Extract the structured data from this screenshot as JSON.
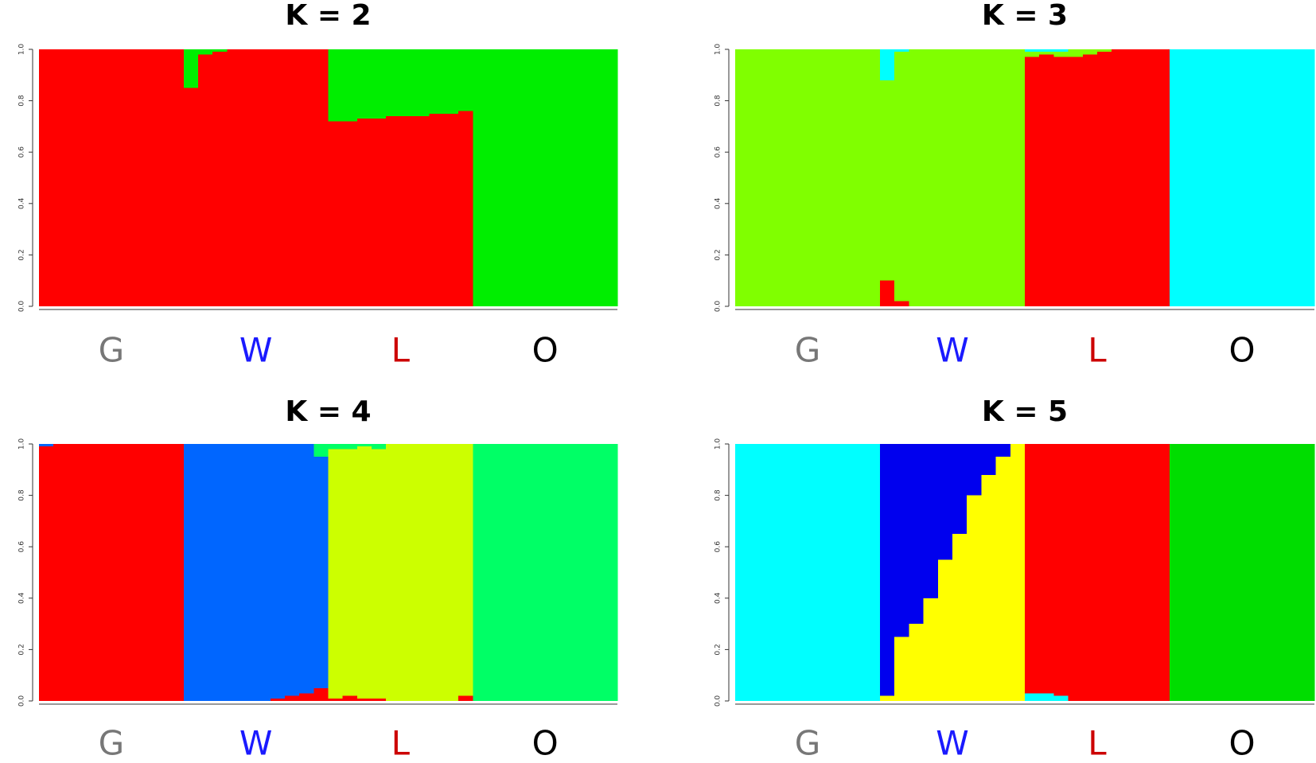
{
  "chart_data": [
    {
      "type": "structure",
      "title": "K = 2",
      "ylim": [
        0,
        1
      ],
      "yticks": [
        {
          "value": 0,
          "label": "0.0"
        },
        {
          "value": 0.2,
          "label": "0.2"
        },
        {
          "value": 0.4,
          "label": "0.4"
        },
        {
          "value": 0.6,
          "label": "0.6"
        },
        {
          "value": 0.8,
          "label": "0.8"
        },
        {
          "value": 1,
          "label": "1.0"
        }
      ],
      "groups": [
        {
          "label": "G",
          "color": "#777777"
        },
        {
          "label": "W",
          "color": "#1a1aff"
        },
        {
          "label": "L",
          "color": "#cc0000"
        },
        {
          "label": "O",
          "color": "#000000"
        }
      ],
      "series": [
        {
          "color": "#ff0000",
          "values": [
            1,
            1,
            1,
            1,
            1,
            1,
            1,
            1,
            1,
            1,
            0.85,
            0.98,
            0.99,
            1,
            1,
            1,
            1,
            1,
            1,
            1,
            0.72,
            0.72,
            0.73,
            0.73,
            0.74,
            0.74,
            0.74,
            0.75,
            0.75,
            0.76,
            0,
            0,
            0,
            0,
            0,
            0,
            0,
            0,
            0,
            0
          ]
        },
        {
          "color": "#00ee00",
          "values": [
            0,
            0,
            0,
            0,
            0,
            0,
            0,
            0,
            0,
            0,
            0.15,
            0.02,
            0.01,
            0,
            0,
            0,
            0,
            0,
            0,
            0,
            0.28,
            0.28,
            0.27,
            0.27,
            0.26,
            0.26,
            0.26,
            0.25,
            0.25,
            0.24,
            1,
            1,
            1,
            1,
            1,
            1,
            1,
            1,
            1,
            1
          ]
        }
      ]
    },
    {
      "type": "structure",
      "title": "K = 3",
      "ylim": [
        0,
        1
      ],
      "yticks": [
        {
          "value": 0,
          "label": "0.0"
        },
        {
          "value": 0.2,
          "label": "0.2"
        },
        {
          "value": 0.4,
          "label": "0.4"
        },
        {
          "value": 0.6,
          "label": "0.6"
        },
        {
          "value": 0.8,
          "label": "0.8"
        },
        {
          "value": 1,
          "label": "1.0"
        }
      ],
      "groups": [
        {
          "label": "G",
          "color": "#777777"
        },
        {
          "label": "W",
          "color": "#1a1aff"
        },
        {
          "label": "L",
          "color": "#cc0000"
        },
        {
          "label": "O",
          "color": "#000000"
        }
      ],
      "series": [
        {
          "color": "#ff0000",
          "values": [
            0,
            0,
            0,
            0,
            0,
            0,
            0,
            0,
            0,
            0,
            0.1,
            0.02,
            0,
            0,
            0,
            0,
            0,
            0,
            0,
            0,
            0.97,
            0.98,
            0.97,
            0.97,
            0.98,
            0.99,
            1,
            1,
            1,
            1,
            0,
            0,
            0,
            0,
            0,
            0,
            0,
            0,
            0,
            0
          ]
        },
        {
          "color": "#80ff00",
          "values": [
            1,
            1,
            1,
            1,
            1,
            1,
            1,
            1,
            1,
            1,
            0.78,
            0.97,
            1,
            1,
            1,
            1,
            1,
            1,
            1,
            1,
            0.02,
            0.01,
            0.02,
            0.03,
            0.02,
            0.01,
            0,
            0,
            0,
            0,
            0,
            0,
            0,
            0,
            0,
            0,
            0,
            0,
            0,
            0
          ]
        },
        {
          "color": "#00ffff",
          "values": [
            0,
            0,
            0,
            0,
            0,
            0,
            0,
            0,
            0,
            0,
            0.12,
            0.01,
            0,
            0,
            0,
            0,
            0,
            0,
            0,
            0,
            0.01,
            0.01,
            0.01,
            0,
            0,
            0,
            0,
            0,
            0,
            0,
            1,
            1,
            1,
            1,
            1,
            1,
            1,
            1,
            1,
            1
          ]
        }
      ]
    },
    {
      "type": "structure",
      "title": "K = 4",
      "ylim": [
        0,
        1
      ],
      "yticks": [
        {
          "value": 0,
          "label": "0.0"
        },
        {
          "value": 0.2,
          "label": "0.2"
        },
        {
          "value": 0.4,
          "label": "0.4"
        },
        {
          "value": 0.6,
          "label": "0.6"
        },
        {
          "value": 0.8,
          "label": "0.8"
        },
        {
          "value": 1,
          "label": "1.0"
        }
      ],
      "groups": [
        {
          "label": "G",
          "color": "#777777"
        },
        {
          "label": "W",
          "color": "#1a1aff"
        },
        {
          "label": "L",
          "color": "#cc0000"
        },
        {
          "label": "O",
          "color": "#000000"
        }
      ],
      "series": [
        {
          "color": "#ff0000",
          "values": [
            0.99,
            1,
            1,
            1,
            1,
            1,
            1,
            1,
            1,
            1,
            0,
            0,
            0,
            0,
            0,
            0,
            0.01,
            0.02,
            0.03,
            0.05,
            0.01,
            0.02,
            0.01,
            0.01,
            0,
            0,
            0,
            0,
            0,
            0.02,
            0,
            0,
            0,
            0,
            0,
            0,
            0,
            0,
            0,
            0
          ]
        },
        {
          "color": "#0066ff",
          "values": [
            0.01,
            0,
            0,
            0,
            0,
            0,
            0,
            0,
            0,
            0,
            1,
            1,
            1,
            1,
            1,
            1,
            0.99,
            0.98,
            0.97,
            0.9,
            0,
            0,
            0,
            0,
            0,
            0,
            0,
            0,
            0,
            0,
            0,
            0,
            0,
            0,
            0,
            0,
            0,
            0,
            0,
            0
          ]
        },
        {
          "color": "#ccff00",
          "values": [
            0,
            0,
            0,
            0,
            0,
            0,
            0,
            0,
            0,
            0,
            0,
            0,
            0,
            0,
            0,
            0,
            0,
            0,
            0,
            0,
            0.97,
            0.96,
            0.98,
            0.97,
            1,
            1,
            1,
            1,
            1,
            0.98,
            0,
            0,
            0,
            0,
            0,
            0,
            0,
            0,
            0,
            0
          ]
        },
        {
          "color": "#00ff66",
          "values": [
            0,
            0,
            0,
            0,
            0,
            0,
            0,
            0,
            0,
            0,
            0,
            0,
            0,
            0,
            0,
            0,
            0,
            0,
            0,
            0.05,
            0.02,
            0.02,
            0.01,
            0.02,
            0,
            0,
            0,
            0,
            0,
            0,
            1,
            1,
            1,
            1,
            1,
            1,
            1,
            1,
            1,
            1
          ]
        }
      ]
    },
    {
      "type": "structure",
      "title": "K = 5",
      "ylim": [
        0,
        1
      ],
      "yticks": [
        {
          "value": 0,
          "label": "0.0"
        },
        {
          "value": 0.2,
          "label": "0.2"
        },
        {
          "value": 0.4,
          "label": "0.4"
        },
        {
          "value": 0.6,
          "label": "0.6"
        },
        {
          "value": 0.8,
          "label": "0.8"
        },
        {
          "value": 1,
          "label": "1.0"
        }
      ],
      "groups": [
        {
          "label": "G",
          "color": "#777777"
        },
        {
          "label": "W",
          "color": "#1a1aff"
        },
        {
          "label": "L",
          "color": "#cc0000"
        },
        {
          "label": "O",
          "color": "#000000"
        }
      ],
      "series": [
        {
          "color": "#00ffff",
          "values": [
            1,
            1,
            1,
            1,
            1,
            1,
            1,
            1,
            1,
            1,
            0,
            0,
            0,
            0,
            0,
            0,
            0,
            0,
            0,
            0,
            0.03,
            0.03,
            0.02,
            0,
            0,
            0,
            0,
            0,
            0,
            0,
            0,
            0,
            0,
            0,
            0,
            0,
            0,
            0,
            0,
            0
          ]
        },
        {
          "color": "#ffff00",
          "values": [
            0,
            0,
            0,
            0,
            0,
            0,
            0,
            0,
            0,
            0,
            0.02,
            0.25,
            0.3,
            0.4,
            0.55,
            0.65,
            0.8,
            0.88,
            0.95,
            1,
            0,
            0,
            0,
            0,
            0,
            0,
            0,
            0,
            0,
            0,
            0,
            0,
            0,
            0,
            0,
            0,
            0,
            0,
            0,
            0
          ]
        },
        {
          "color": "#0000ee",
          "values": [
            0,
            0,
            0,
            0,
            0,
            0,
            0,
            0,
            0,
            0,
            0.98,
            0.75,
            0.7,
            0.6,
            0.45,
            0.35,
            0.2,
            0.12,
            0.05,
            0,
            0,
            0,
            0,
            0,
            0,
            0,
            0,
            0,
            0,
            0,
            0,
            0,
            0,
            0,
            0,
            0,
            0,
            0,
            0,
            0
          ]
        },
        {
          "color": "#ff0000",
          "values": [
            0,
            0,
            0,
            0,
            0,
            0,
            0,
            0,
            0,
            0,
            0,
            0,
            0,
            0,
            0,
            0,
            0,
            0,
            0,
            0,
            0.97,
            0.97,
            0.98,
            1,
            1,
            1,
            1,
            1,
            1,
            1,
            0,
            0,
            0,
            0,
            0,
            0,
            0,
            0,
            0,
            0
          ]
        },
        {
          "color": "#00dd00",
          "values": [
            0,
            0,
            0,
            0,
            0,
            0,
            0,
            0,
            0,
            0,
            0,
            0,
            0,
            0,
            0,
            0,
            0,
            0,
            0,
            0,
            0,
            0,
            0,
            0,
            0,
            0,
            0,
            0,
            0,
            0,
            1,
            1,
            1,
            1,
            1,
            1,
            1,
            1,
            1,
            1
          ]
        }
      ]
    }
  ]
}
